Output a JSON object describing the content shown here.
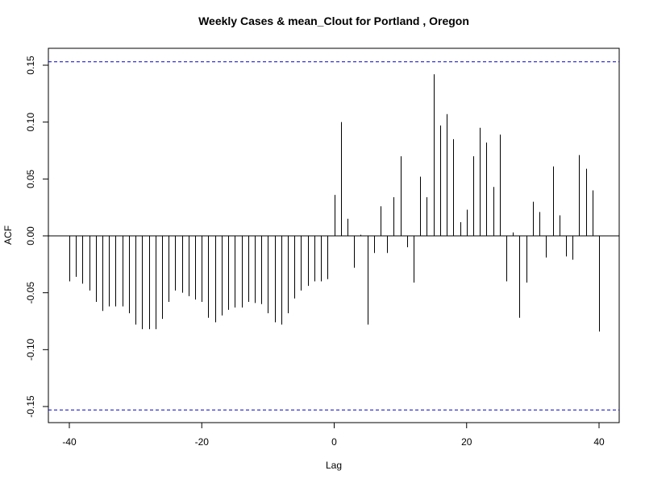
{
  "chart_data": {
    "type": "bar",
    "subtype": "acf-lag-plot",
    "title": "Weekly Cases & mean_Clout for Portland , Oregon",
    "xlabel": "Lag",
    "ylabel": "ACF",
    "xlim": [
      -40,
      40
    ],
    "ylim": [
      -0.15,
      0.15
    ],
    "x_ticks": [
      "-40",
      "-20",
      "0",
      "20",
      "40"
    ],
    "x_tick_values": [
      -40,
      -20,
      0,
      20,
      40
    ],
    "y_ticks": [
      "-0.15",
      "-0.10",
      "-0.05",
      "0.00",
      "0.05",
      "0.10",
      "0.15"
    ],
    "y_tick_values": [
      -0.15,
      -0.1,
      -0.05,
      0.0,
      0.05,
      0.1,
      0.15
    ],
    "confidence_limit": 0.153,
    "confidence_color": "#0000cc",
    "bar_color": "#000000",
    "lags": [
      -40,
      -39,
      -38,
      -37,
      -36,
      -35,
      -34,
      -33,
      -32,
      -31,
      -30,
      -29,
      -28,
      -27,
      -26,
      -25,
      -24,
      -23,
      -22,
      -21,
      -20,
      -19,
      -18,
      -17,
      -16,
      -15,
      -14,
      -13,
      -12,
      -11,
      -10,
      -9,
      -8,
      -7,
      -6,
      -5,
      -4,
      -3,
      -2,
      -1,
      0,
      1,
      2,
      3,
      4,
      5,
      6,
      7,
      8,
      9,
      10,
      11,
      12,
      13,
      14,
      15,
      16,
      17,
      18,
      19,
      20,
      21,
      22,
      23,
      24,
      25,
      26,
      27,
      28,
      29,
      30,
      31,
      32,
      33,
      34,
      35,
      36,
      37,
      38,
      39,
      40
    ],
    "values": [
      -0.04,
      -0.036,
      -0.042,
      -0.048,
      -0.058,
      -0.066,
      -0.062,
      -0.062,
      -0.062,
      -0.068,
      -0.078,
      -0.082,
      -0.082,
      -0.082,
      -0.073,
      -0.058,
      -0.048,
      -0.05,
      -0.053,
      -0.056,
      -0.058,
      -0.072,
      -0.076,
      -0.07,
      -0.065,
      -0.063,
      -0.063,
      -0.058,
      -0.059,
      -0.06,
      -0.068,
      -0.076,
      -0.078,
      -0.068,
      -0.055,
      -0.048,
      -0.044,
      -0.04,
      -0.04,
      -0.038,
      0.036,
      0.1,
      0.015,
      -0.028,
      0.001,
      -0.078,
      -0.015,
      0.026,
      -0.015,
      0.034,
      0.07,
      -0.01,
      -0.041,
      0.052,
      0.034,
      0.142,
      0.097,
      0.107,
      0.085,
      0.012,
      0.023,
      0.07,
      0.095,
      0.082,
      0.043,
      0.089,
      -0.04,
      0.003,
      -0.072,
      -0.041,
      0.03,
      0.021,
      -0.019,
      0.061,
      0.018,
      -0.018,
      -0.021,
      0.071,
      0.059,
      0.04,
      -0.084
    ]
  }
}
